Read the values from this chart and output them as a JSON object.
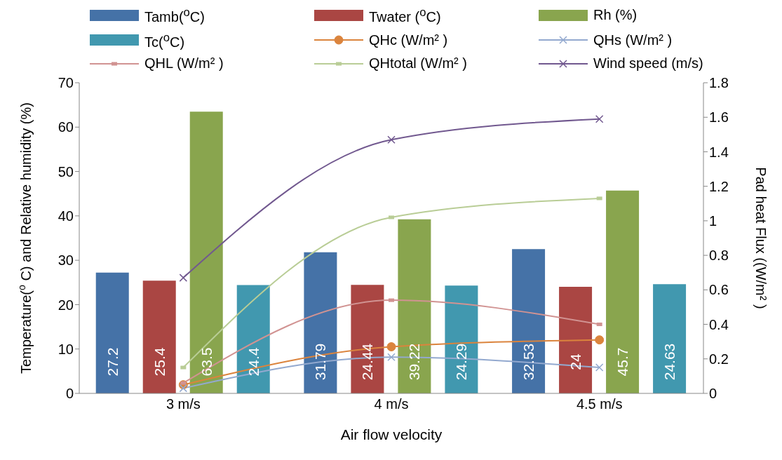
{
  "chart_data": {
    "type": "bar",
    "xlabel": "Air  flow velocity",
    "ylabel": "Temperature($^{o}$C)  and Relative humidity (%)",
    "y2label": "Pad  heat Flux ((W/m² )",
    "categories": [
      "3 m/s",
      "4 m/s",
      "4.5 m/s"
    ],
    "series": [
      {
        "name": "Tamb($^{o}$C)",
        "color": "#4572a7",
        "values": [
          27.2,
          31.79,
          32.53
        ],
        "value_labels": [
          "27.2",
          "31.79",
          "32.53"
        ]
      },
      {
        "name": "Twater ($^{o}$C)",
        "color": "#aa4643",
        "values": [
          25.4,
          24.44,
          24
        ],
        "value_labels": [
          "25.4",
          "24.44",
          "24"
        ]
      },
      {
        "name": "Rh (%)",
        "color": "#89a54e",
        "values": [
          63.5,
          39.22,
          45.7
        ],
        "value_labels": [
          "63.5",
          "39.22",
          "45.7"
        ]
      },
      {
        "name": "Tc($^{o}$C)",
        "color": "#4198af",
        "values": [
          24.4,
          24.29,
          24.63
        ],
        "value_labels": [
          "24.4",
          "24.29",
          "24.63"
        ]
      },
      {
        "name": "QHc (W/m² )",
        "type": "line",
        "axis": "y2",
        "marker": "circle",
        "color": "#db843d",
        "values": [
          0.05,
          0.27,
          0.31
        ]
      },
      {
        "name": "QHs (W/m² )",
        "type": "line",
        "axis": "y2",
        "marker": "cross",
        "color": "#93a9cf",
        "values": [
          0.03,
          0.21,
          0.15
        ]
      },
      {
        "name": "QHL (W/m² )",
        "type": "line",
        "axis": "y2",
        "marker": "square",
        "color": "#d19392",
        "values": [
          0.06,
          0.54,
          0.4
        ]
      },
      {
        "name": "QHtotal (W/m² )",
        "type": "line",
        "axis": "y2",
        "marker": "square",
        "color": "#b9cd96",
        "values": [
          0.15,
          1.02,
          1.13
        ]
      },
      {
        "name": "Wind speed (m/s)",
        "type": "line",
        "axis": "y2",
        "marker": "cross",
        "color": "#71588f",
        "values": [
          0.67,
          1.47,
          1.59
        ]
      }
    ],
    "ylim": [
      0,
      70
    ],
    "yticks": [
      0,
      10,
      20,
      30,
      40,
      50,
      60,
      70
    ],
    "y2lim": [
      0,
      1.8
    ],
    "y2ticks": [
      0,
      {
        "value": 0.2,
        "label": "0.2"
      },
      {
        "value": 0.4,
        "label": "0.4"
      },
      {
        "value": 0.6,
        "label": "0.6"
      },
      {
        "value": 0.8,
        "label": "0.8"
      },
      1,
      {
        "value": 1.2,
        "label": "1.2"
      },
      {
        "value": 1.4,
        "label": "1.4"
      },
      {
        "value": 1.6,
        "label": "1.6"
      },
      {
        "value": 1.8,
        "label": "1.8"
      }
    ],
    "grid": false,
    "legend": "top",
    "line_style": "solid"
  }
}
